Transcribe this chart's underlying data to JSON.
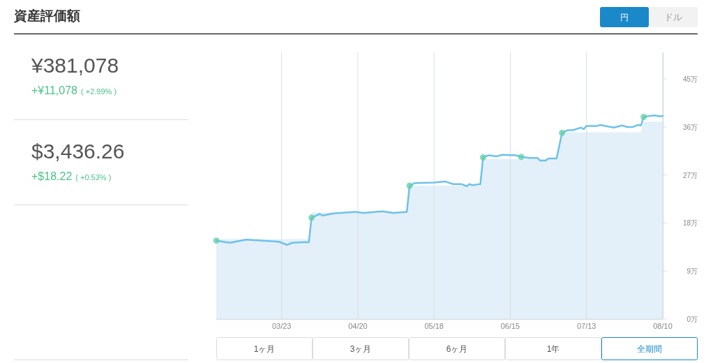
{
  "chart_data": [
    {
      "type": "other",
      "title": "資産評価額",
      "annotations": [
        "円",
        "ドル",
        "¥381,078",
        "+¥11,078",
        "( +2.99% )",
        "$3,436.26",
        "+$18.22",
        "( +0.53% )"
      ]
    },
    {
      "type": "line",
      "xlim": [
        "--02-27",
        "--08-10"
      ],
      "ylim": [
        0,
        50
      ],
      "xticks": [
        {
          "value": "--03-23",
          "label": "03/23"
        },
        {
          "value": "--04-20",
          "label": "04/20"
        },
        {
          "value": "--05-18",
          "label": "05/18"
        },
        {
          "value": "--06-15",
          "label": "06/15"
        },
        {
          "value": "--07-13",
          "label": "07/13"
        },
        {
          "value": "--08-10",
          "label": "08/10"
        }
      ],
      "yticks": [
        {
          "value": 0,
          "label": "0万"
        },
        {
          "value": 9,
          "label": "9万"
        },
        {
          "value": 18,
          "label": "18万"
        },
        {
          "value": 27,
          "label": "27万"
        },
        {
          "value": 36,
          "label": "36万"
        },
        {
          "value": 45,
          "label": "45万"
        }
      ],
      "grid": "x",
      "series": [
        {
          "type": "area",
          "color": "#e3f0f9",
          "x": [
            "--02-27",
            "--04-02",
            "--04-03",
            "--05-08",
            "--05-09",
            "--06-04",
            "--06-05",
            "--07-02",
            "--07-04",
            "--08-02",
            "--08-03",
            "--08-10"
          ],
          "values": [
            15,
            15,
            20,
            20,
            25,
            25,
            30,
            30,
            35,
            35,
            37,
            37
          ]
        },
        {
          "type": "line",
          "color": "#6ec1ea",
          "marker": "none",
          "line_style": "solid",
          "x": [
            "--02-27",
            "--03-04",
            "--03-10",
            "--03-19",
            "--03-22",
            "--03-25",
            "--03-27",
            "--03-31",
            "--04-02",
            "--04-03",
            "--04-06",
            "--04-07",
            "--04-11",
            "--04-19",
            "--04-22",
            "--04-29",
            "--05-03",
            "--05-08",
            "--05-09",
            "--05-11",
            "--05-18",
            "--05-22",
            "--05-25",
            "--05-28",
            "--05-30",
            "--05-31",
            "--06-01",
            "--06-04",
            "--06-05",
            "--06-07",
            "--06-10",
            "--06-12",
            "--06-17",
            "--06-19",
            "--06-22",
            "--06-25",
            "--06-26",
            "--06-28",
            "--06-29",
            "--07-02",
            "--07-04",
            "--07-06",
            "--07-08",
            "--07-11",
            "--07-12",
            "--07-13",
            "--07-17",
            "--07-18",
            "--07-21",
            "--07-23",
            "--07-26",
            "--07-28",
            "--07-30",
            "--08-01",
            "--08-02",
            "--08-03",
            "--08-04",
            "--08-07",
            "--08-09",
            "--08-10"
          ],
          "values": [
            14.7,
            14.3,
            14.9,
            14.6,
            14.5,
            13.9,
            14.3,
            14.4,
            14.4,
            19.0,
            19.7,
            19.4,
            19.8,
            20.1,
            19.9,
            20.2,
            19.9,
            20.1,
            25.0,
            25.5,
            25.6,
            25.8,
            25.3,
            25.3,
            24.9,
            25.3,
            25.1,
            25.3,
            30.3,
            30.7,
            30.5,
            30.8,
            30.7,
            30.4,
            30.2,
            30.2,
            29.7,
            29.7,
            30.1,
            30.1,
            34.9,
            35.4,
            35.4,
            35.9,
            35.6,
            36.2,
            36.2,
            36.4,
            36.1,
            35.9,
            36.3,
            36.0,
            36.0,
            36.4,
            36.3,
            37.9,
            38.0,
            38.2,
            38.0,
            38.1
          ]
        },
        {
          "type": "scatter",
          "color": "#5dcfa5",
          "marker": "circle",
          "x": [
            "--02-27",
            "--04-03",
            "--05-09",
            "--06-05",
            "--06-19",
            "--07-04",
            "--08-03"
          ],
          "values": [
            14.7,
            19.0,
            25.0,
            30.3,
            30.4,
            34.9,
            37.9
          ]
        }
      ],
      "annotations": [
        "1ヶ月",
        "3ヶ月",
        "6ヶ月",
        "1年",
        "全期間"
      ]
    }
  ]
}
